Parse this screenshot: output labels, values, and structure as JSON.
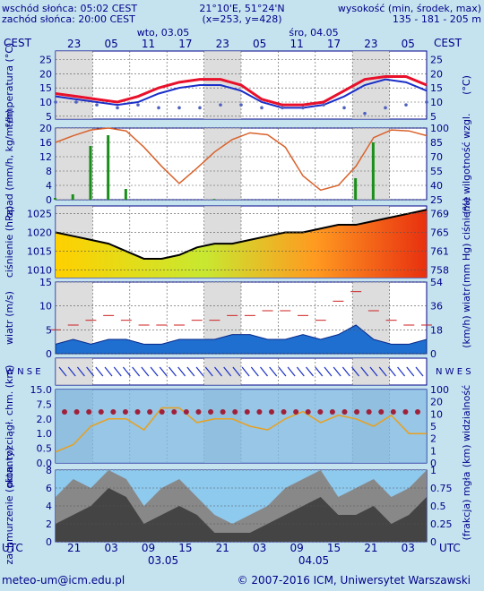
{
  "header": {
    "sunrise": "wschód słońca: 05:02 CEST",
    "sunset": "zachód słońca: 20:00 CEST",
    "coords": "21°10'E, 51°24'N",
    "grid": "(x=253,  y=428)",
    "height_label": "wysokość (min, środek, max)",
    "height_values": "135 - 181 - 205 m",
    "day1": "wto, 03.05",
    "day2": "śro, 04.05",
    "tz_left": "CEST",
    "tz_right": "CEST",
    "top_hours": [
      "23",
      "05",
      "11",
      "17",
      "23",
      "05",
      "11",
      "17",
      "23",
      "05"
    ],
    "bottom_hours": [
      "21",
      "03",
      "09",
      "15",
      "21",
      "03",
      "09",
      "15",
      "21",
      "03"
    ],
    "utc_left": "UTC",
    "utc_right": "UTC",
    "bottom_date1": "03.05",
    "bottom_date2": "04.05"
  },
  "footer": {
    "email": "meteo-um@icm.edu.pl",
    "copyright": "© 2007-2016 ICM, Uniwersytet Warszawski"
  },
  "colors": {
    "background": "#c5e3ee",
    "night_band": "#cfcfcf",
    "text": "#00008b",
    "temp_line": "#e8102a",
    "dewpoint_line": "#1a2fc8",
    "humidity_line": "#d9622b",
    "precip_bars": "#1a8f1a",
    "pressure_line": "#000000",
    "wind_area": "#1e6fd0",
    "wind_gust": "#cc2222",
    "visibility_area": "#7db8e0",
    "cloud_area": "#444444"
  },
  "chart_data": [
    {
      "type": "line",
      "name": "temperature",
      "ylabel_left": "temperatura (°C)",
      "ylabel_right": "(°C)",
      "yticks": [
        5,
        10,
        15,
        20,
        25
      ],
      "ylim": [
        4,
        28
      ],
      "x_hours": [
        0,
        3,
        6,
        9,
        12,
        15,
        18,
        21,
        24,
        27,
        30,
        33,
        36,
        39,
        42,
        45,
        48,
        51,
        54
      ],
      "series": [
        {
          "values": [
            13,
            12,
            11,
            10,
            12,
            15,
            17,
            18,
            18,
            16,
            11,
            9,
            9,
            10,
            14,
            18,
            19,
            19,
            16
          ]
        },
        {
          "values": [
            12,
            11,
            10,
            9,
            10,
            13,
            15,
            16,
            16,
            14,
            10,
            8,
            8,
            9,
            12,
            16,
            18,
            17,
            14
          ]
        },
        {
          "values": [
            10,
            10,
            9,
            8,
            9,
            8,
            8,
            8,
            9,
            9,
            8,
            8,
            8,
            9,
            8,
            6,
            8,
            9,
            10
          ]
        }
      ]
    },
    {
      "type": "bar",
      "name": "precipitation-humidity",
      "ylabel_left": "opad (mm/h, kg/m²/h)",
      "ylabel_right": "(%) wilgotność wzgl.",
      "yticks_left": [
        0,
        4,
        8,
        12,
        16,
        20
      ],
      "yticks_right": [
        25,
        40,
        55,
        70,
        85,
        100
      ],
      "humidity": [
        85,
        92,
        98,
        100,
        97,
        80,
        60,
        42,
        58,
        75,
        88,
        95,
        93,
        80,
        50,
        35,
        40,
        60,
        90,
        98,
        97,
        92
      ],
      "precip": [
        0.5,
        1.5,
        15,
        18,
        3,
        0,
        0,
        0,
        0,
        0.2,
        0,
        0,
        0,
        0,
        0,
        0,
        0,
        6,
        16,
        0,
        0,
        0
      ]
    },
    {
      "type": "area",
      "name": "pressure",
      "ylabel_left": "ciśnienie (hPa)",
      "ylabel_right": "(mm Hg) ciśnienie",
      "yticks_left": [
        1010,
        1015,
        1020,
        1025
      ],
      "yticks_right": [
        758,
        761,
        765,
        769
      ],
      "ylim": [
        1008,
        1027
      ],
      "values": [
        1020,
        1019,
        1018,
        1017,
        1015,
        1013,
        1013,
        1014,
        1016,
        1017,
        1017,
        1018,
        1019,
        1020,
        1020,
        1021,
        1022,
        1022,
        1023,
        1024,
        1025,
        1026
      ]
    },
    {
      "type": "area",
      "name": "wind",
      "ylabel_left": "wiatr (m/s)",
      "ylabel_right": "(km/h) wiatr",
      "yticks_left": [
        0,
        5,
        10,
        15
      ],
      "yticks_right": [
        0,
        18,
        36,
        54
      ],
      "ylim": [
        0,
        15
      ],
      "speed": [
        2,
        3,
        2,
        3,
        3,
        2,
        2,
        3,
        3,
        3,
        4,
        4,
        3,
        3,
        4,
        3,
        4,
        6,
        3,
        2,
        2,
        3
      ],
      "gust": [
        5,
        6,
        7,
        8,
        7,
        6,
        6,
        6,
        7,
        7,
        8,
        8,
        9,
        9,
        8,
        7,
        11,
        13,
        9,
        7,
        6,
        6
      ]
    },
    {
      "type": "scatter",
      "name": "wind-direction",
      "label_left": "W N S E",
      "label_right": "N W E S"
    },
    {
      "type": "line",
      "name": "visibility",
      "ylabel_left": "pion. rozciągł. chm. (km)",
      "ylabel_right": "(km) widzialność",
      "yticks_left": [
        "0.0",
        "0.5",
        "1.0",
        "2.0",
        "7.5",
        "15.0"
      ],
      "yticks_right": [
        0,
        1,
        2,
        5,
        10,
        20,
        100
      ],
      "visibility": [
        3,
        5,
        10,
        12,
        12,
        9,
        15,
        15,
        11,
        12,
        12,
        10,
        9,
        12,
        14,
        11,
        13,
        12,
        10,
        13,
        8,
        8
      ]
    },
    {
      "type": "area",
      "name": "cloud-cover",
      "ylabel_left": "zachmurzenie (oktanty)",
      "ylabel_right": "(frakcja) mgła",
      "yticks_left": [
        0,
        2,
        4,
        6,
        8
      ],
      "yticks_right": [
        "0",
        "0.25",
        "0.5",
        "0.75",
        "1"
      ],
      "ylim": [
        0,
        8
      ],
      "total": [
        5,
        7,
        6,
        8,
        7,
        4,
        6,
        7,
        5,
        3,
        2,
        3,
        4,
        6,
        7,
        8,
        5,
        6,
        7,
        5,
        6,
        8
      ],
      "low": [
        2,
        3,
        4,
        6,
        5,
        2,
        3,
        4,
        3,
        1,
        1,
        1,
        2,
        3,
        4,
        5,
        3,
        3,
        4,
        2,
        3,
        5
      ]
    }
  ]
}
